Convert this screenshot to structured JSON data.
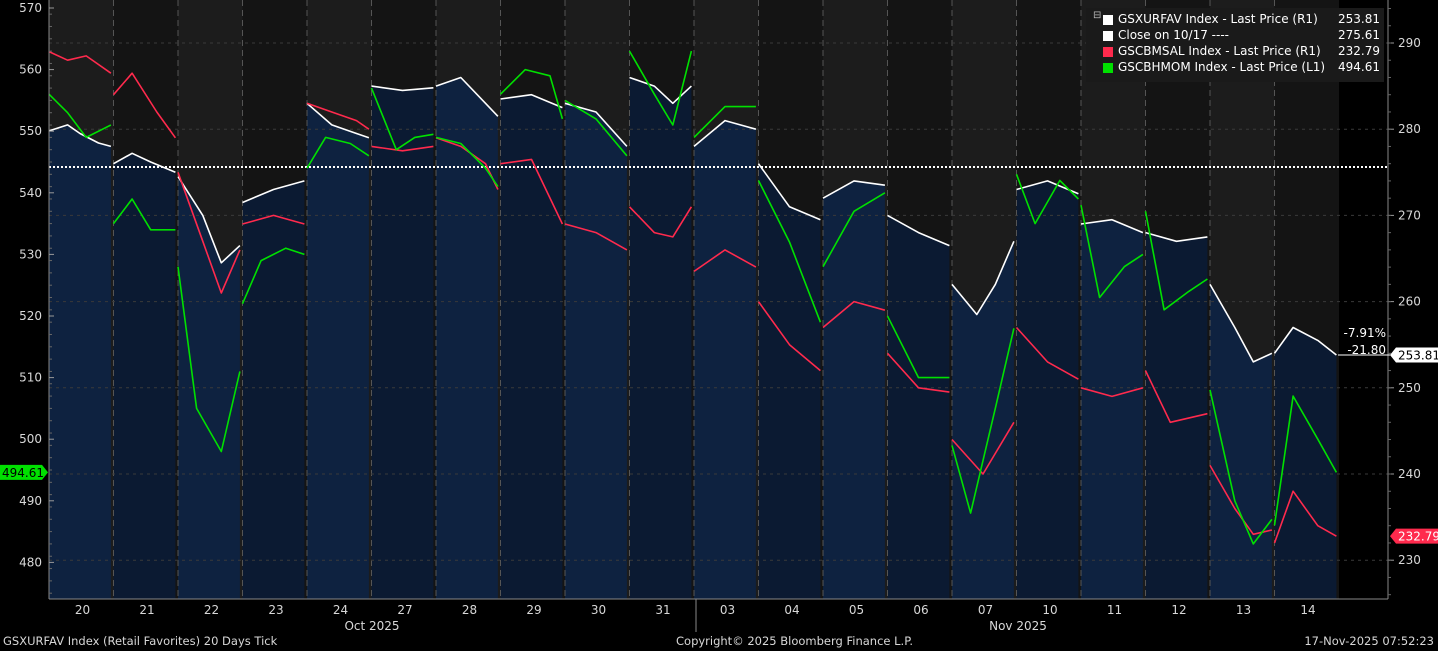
{
  "footer": {
    "left": "GSXURFAV Index (Retail Favorites) 20 Days Tick",
    "center": "Copyright© 2025 Bloomberg Finance L.P.",
    "right": "17-Nov-2025 07:52:23"
  },
  "legend": [
    {
      "name": "GSXURFAV Index - Last Price (R1)",
      "value": "253.81",
      "color": "#ffffff"
    },
    {
      "name": "Close on 10/17 ----",
      "value": "275.61",
      "color": "#ffffff"
    },
    {
      "name": "GSCBMSAL Index - Last Price (R1)",
      "value": "232.79",
      "color": "#ff2a4d"
    },
    {
      "name": "GSCBHMOM Index - Last Price (L1)",
      "value": "494.61",
      "color": "#00e000"
    }
  ],
  "chart_data": {
    "type": "line",
    "days": [
      "20",
      "21",
      "22",
      "23",
      "24",
      "27",
      "28",
      "29",
      "30",
      "31",
      "03",
      "04",
      "05",
      "06",
      "07",
      "10",
      "11",
      "12",
      "13",
      "14"
    ],
    "months": [
      "Oct 2025",
      "Nov 2025"
    ],
    "left_axis": {
      "min": 475,
      "max": 570,
      "ticks": [
        "570",
        "560",
        "550",
        "540",
        "530",
        "520",
        "510",
        "500",
        "490",
        "480"
      ]
    },
    "right_axis": {
      "min": 225,
      "max": 295,
      "ticks": [
        "290",
        "280",
        "270",
        "260",
        "250",
        "240",
        "230"
      ]
    },
    "reference_line": {
      "label": "Close on 10/17",
      "value": 275.61
    },
    "change_annotation": {
      "pct": "-7.91%",
      "abs": "-21.80"
    },
    "last_labels": {
      "white": "253.81",
      "red": "232.79",
      "green": "494.61"
    },
    "colors": {
      "white": "#ffffff",
      "red": "#ff2a4d",
      "green": "#00e000",
      "area": "#0e2240",
      "night": "#1c1c1c"
    },
    "series": [
      {
        "name": "GSXURFAV Index - Last Price (R1)",
        "axis": "right",
        "color": "#ffffff",
        "days": [
          [
            [
              0,
              279.8
            ],
            [
              0.3,
              280.5
            ],
            [
              0.5,
              279.5
            ],
            [
              0.8,
              278.4
            ],
            [
              1,
              278
            ]
          ],
          [
            [
              0,
              276
            ],
            [
              0.3,
              277.2
            ],
            [
              0.6,
              276.2
            ],
            [
              1,
              275
            ]
          ],
          [
            [
              0,
              274.5
            ],
            [
              0.4,
              270
            ],
            [
              0.7,
              264.5
            ],
            [
              1,
              266.5
            ]
          ],
          [
            [
              0,
              271.5
            ],
            [
              0.5,
              273
            ],
            [
              1,
              274
            ]
          ],
          [
            [
              0,
              283
            ],
            [
              0.4,
              280.5
            ],
            [
              0.8,
              279.5
            ],
            [
              1,
              279
            ]
          ],
          [
            [
              0,
              285
            ],
            [
              0.5,
              284.5
            ],
            [
              1,
              284.8
            ]
          ],
          [
            [
              0,
              285
            ],
            [
              0.4,
              286
            ],
            [
              0.8,
              283
            ],
            [
              1,
              281.5
            ]
          ],
          [
            [
              0,
              283.5
            ],
            [
              0.5,
              284
            ],
            [
              1,
              282.5
            ]
          ],
          [
            [
              0,
              283
            ],
            [
              0.5,
              282
            ],
            [
              1,
              278
            ]
          ],
          [
            [
              0,
              286
            ],
            [
              0.4,
              285
            ],
            [
              0.7,
              283
            ],
            [
              1,
              285
            ]
          ],
          [
            [
              0,
              278
            ],
            [
              0.5,
              281
            ],
            [
              1,
              280
            ]
          ],
          [
            [
              0,
              276
            ],
            [
              0.5,
              271
            ],
            [
              1,
              269.5
            ]
          ],
          [
            [
              0,
              272
            ],
            [
              0.5,
              274
            ],
            [
              1,
              273.5
            ]
          ],
          [
            [
              0,
              270
            ],
            [
              0.5,
              268
            ],
            [
              1,
              266.5
            ]
          ],
          [
            [
              0,
              262
            ],
            [
              0.4,
              258.5
            ],
            [
              0.7,
              262
            ],
            [
              1,
              267
            ]
          ],
          [
            [
              0,
              273
            ],
            [
              0.5,
              274
            ],
            [
              1,
              272.5
            ]
          ],
          [
            [
              0,
              269
            ],
            [
              0.5,
              269.5
            ],
            [
              1,
              268
            ]
          ],
          [
            [
              0,
              268
            ],
            [
              0.5,
              267
            ],
            [
              1,
              267.5
            ]
          ],
          [
            [
              0,
              262
            ],
            [
              0.4,
              257
            ],
            [
              0.7,
              253
            ],
            [
              1,
              254
            ]
          ],
          [
            [
              0,
              254
            ],
            [
              0.3,
              257
            ],
            [
              0.7,
              255.5
            ],
            [
              1,
              253.81
            ]
          ]
        ]
      },
      {
        "name": "GSCBMSAL Index - Last Price (R1)",
        "axis": "right",
        "color": "#ff2a4d",
        "days": [
          [
            [
              0,
              289
            ],
            [
              0.3,
              288
            ],
            [
              0.6,
              288.5
            ],
            [
              1,
              286.5
            ]
          ],
          [
            [
              0,
              284
            ],
            [
              0.3,
              286.5
            ],
            [
              0.7,
              282
            ],
            [
              1,
              279
            ]
          ],
          [
            [
              0,
              275
            ],
            [
              0.4,
              267
            ],
            [
              0.7,
              261
            ],
            [
              1,
              266
            ]
          ],
          [
            [
              0,
              269
            ],
            [
              0.5,
              270
            ],
            [
              1,
              269
            ]
          ],
          [
            [
              0,
              283
            ],
            [
              0.4,
              282
            ],
            [
              0.8,
              281
            ],
            [
              1,
              280
            ]
          ],
          [
            [
              0,
              278
            ],
            [
              0.5,
              277.5
            ],
            [
              1,
              278
            ]
          ],
          [
            [
              0,
              279
            ],
            [
              0.4,
              278
            ],
            [
              0.8,
              276
            ],
            [
              1,
              273
            ]
          ],
          [
            [
              0,
              276
            ],
            [
              0.5,
              276.5
            ],
            [
              1,
              269
            ]
          ],
          [
            [
              0,
              269
            ],
            [
              0.5,
              268
            ],
            [
              1,
              266
            ]
          ],
          [
            [
              0,
              271
            ],
            [
              0.4,
              268
            ],
            [
              0.7,
              267.5
            ],
            [
              1,
              271
            ]
          ],
          [
            [
              0,
              263.5
            ],
            [
              0.5,
              266
            ],
            [
              1,
              264
            ]
          ],
          [
            [
              0,
              260
            ],
            [
              0.5,
              255
            ],
            [
              1,
              252
            ]
          ],
          [
            [
              0,
              257
            ],
            [
              0.5,
              260
            ],
            [
              1,
              259
            ]
          ],
          [
            [
              0,
              254
            ],
            [
              0.5,
              250
            ],
            [
              1,
              249.5
            ]
          ],
          [
            [
              0,
              244
            ],
            [
              0.5,
              240
            ],
            [
              1,
              246
            ]
          ],
          [
            [
              0,
              257
            ],
            [
              0.5,
              253
            ],
            [
              1,
              251
            ]
          ],
          [
            [
              0,
              250
            ],
            [
              0.5,
              249
            ],
            [
              1,
              250
            ]
          ],
          [
            [
              0,
              252
            ],
            [
              0.4,
              246
            ],
            [
              1,
              247
            ]
          ],
          [
            [
              0,
              241
            ],
            [
              0.4,
              236
            ],
            [
              0.7,
              233
            ],
            [
              1,
              233.5
            ]
          ],
          [
            [
              0,
              232
            ],
            [
              0.3,
              238
            ],
            [
              0.7,
              234
            ],
            [
              1,
              232.79
            ]
          ]
        ]
      },
      {
        "name": "GSCBHMOM Index - Last Price (L1)",
        "axis": "left",
        "color": "#00e000",
        "days": [
          [
            [
              0,
              556
            ],
            [
              0.3,
              553
            ],
            [
              0.6,
              549
            ],
            [
              1,
              551
            ]
          ],
          [
            [
              0,
              535
            ],
            [
              0.3,
              539
            ],
            [
              0.6,
              534
            ],
            [
              1,
              534
            ]
          ],
          [
            [
              0,
              528
            ],
            [
              0.3,
              505
            ],
            [
              0.7,
              498
            ],
            [
              1,
              511
            ]
          ],
          [
            [
              0,
              522
            ],
            [
              0.3,
              529
            ],
            [
              0.7,
              531
            ],
            [
              1,
              530
            ]
          ],
          [
            [
              0,
              544
            ],
            [
              0.3,
              549
            ],
            [
              0.7,
              548
            ],
            [
              1,
              546
            ]
          ],
          [
            [
              0,
              557
            ],
            [
              0.4,
              547
            ],
            [
              0.7,
              549
            ],
            [
              1,
              549.5
            ]
          ],
          [
            [
              0,
              549
            ],
            [
              0.4,
              548
            ],
            [
              0.8,
              544
            ],
            [
              1,
              541
            ]
          ],
          [
            [
              0,
              556
            ],
            [
              0.4,
              560
            ],
            [
              0.8,
              559
            ],
            [
              1,
              552
            ]
          ],
          [
            [
              0,
              555
            ],
            [
              0.5,
              552
            ],
            [
              1,
              546
            ]
          ],
          [
            [
              0,
              563
            ],
            [
              0.4,
              556
            ],
            [
              0.7,
              551
            ],
            [
              1,
              563
            ]
          ],
          [
            [
              0,
              549
            ],
            [
              0.5,
              554
            ],
            [
              1,
              554
            ]
          ],
          [
            [
              0,
              542
            ],
            [
              0.5,
              532
            ],
            [
              1,
              519
            ]
          ],
          [
            [
              0,
              528
            ],
            [
              0.5,
              537
            ],
            [
              1,
              540
            ]
          ],
          [
            [
              0,
              520
            ],
            [
              0.5,
              510
            ],
            [
              1,
              510
            ]
          ],
          [
            [
              0,
              499
            ],
            [
              0.3,
              488
            ],
            [
              0.7,
              505
            ],
            [
              1,
              518
            ]
          ],
          [
            [
              0,
              543
            ],
            [
              0.3,
              535
            ],
            [
              0.7,
              542
            ],
            [
              1,
              539
            ]
          ],
          [
            [
              0,
              538
            ],
            [
              0.3,
              523
            ],
            [
              0.7,
              528
            ],
            [
              1,
              530
            ]
          ],
          [
            [
              0,
              537
            ],
            [
              0.3,
              521
            ],
            [
              0.7,
              524
            ],
            [
              1,
              526
            ]
          ],
          [
            [
              0,
              508
            ],
            [
              0.4,
              490
            ],
            [
              0.7,
              483
            ],
            [
              1,
              487
            ]
          ],
          [
            [
              0,
              486
            ],
            [
              0.3,
              507
            ],
            [
              0.7,
              500
            ],
            [
              1,
              494.61
            ]
          ]
        ]
      }
    ]
  }
}
